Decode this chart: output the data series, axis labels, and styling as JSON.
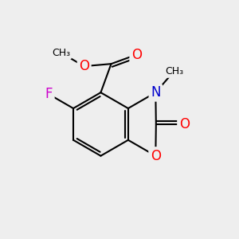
{
  "bg_color": "#eeeeee",
  "bond_color": "#000000",
  "bond_width": 1.5,
  "atom_colors": {
    "O": "#ff0000",
    "N": "#0000cc",
    "F": "#cc00cc",
    "C": "#000000"
  },
  "font_size": 10,
  "fig_size": [
    3.0,
    3.0
  ],
  "dpi": 100
}
